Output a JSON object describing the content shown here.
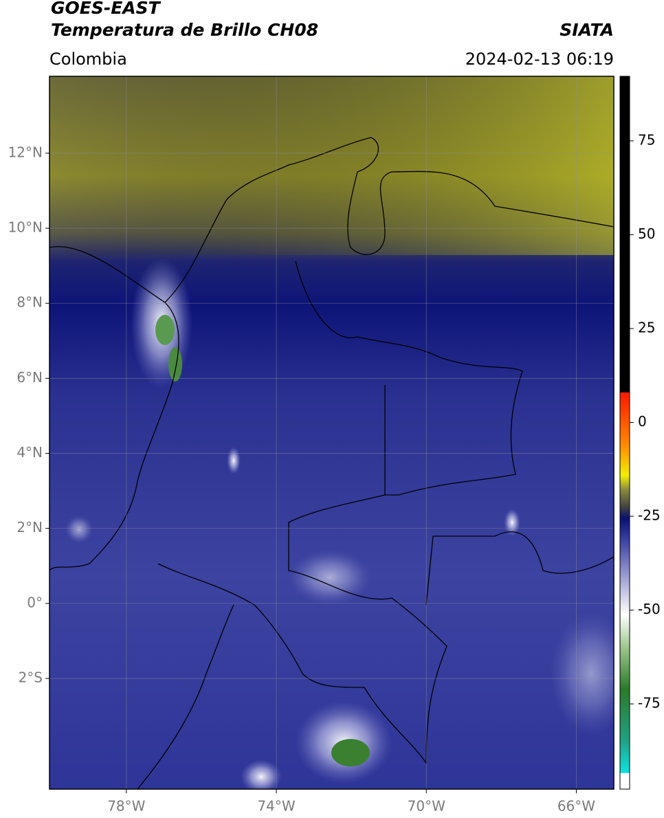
{
  "header": {
    "title_line1": "GOES-EAST",
    "title_line2": "Temperatura de Brillo CH08",
    "source": "SIATA",
    "region": "Colombia",
    "datetime": "2024-02-13 06:19"
  },
  "map": {
    "xlim": [
      -80.05,
      -65.0
    ],
    "ylim": [
      -4.95,
      14.05
    ],
    "grid": true,
    "xticks": [
      {
        "value": -78,
        "label": "78°W"
      },
      {
        "value": -74,
        "label": "74°W"
      },
      {
        "value": -70,
        "label": "70°W"
      },
      {
        "value": -66,
        "label": "66°W"
      }
    ],
    "yticks": [
      {
        "value": 12,
        "label": "12°N"
      },
      {
        "value": 10,
        "label": "10°N"
      },
      {
        "value": 8,
        "label": "8°N"
      },
      {
        "value": 6,
        "label": "6°N"
      },
      {
        "value": 4,
        "label": "4°N"
      },
      {
        "value": 2,
        "label": "2°N"
      },
      {
        "value": 0,
        "label": "0°"
      },
      {
        "value": -2,
        "label": "2°S"
      }
    ]
  },
  "colorbar": {
    "lim": [
      -97.7,
      92.2
    ],
    "ticks": [
      75,
      50,
      25,
      0,
      -25,
      -50,
      -75
    ]
  }
}
